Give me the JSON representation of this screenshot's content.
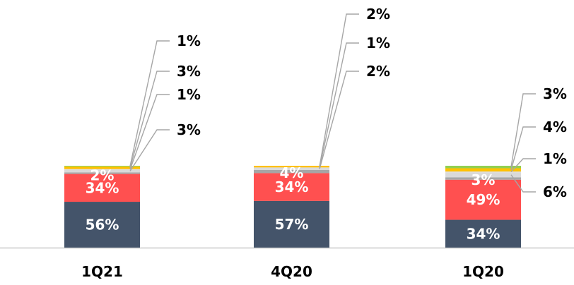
{
  "chart_data": {
    "type": "bar",
    "stacked": true,
    "grid": false,
    "legend": "none",
    "colors": {
      "s1": "#44546a",
      "s2": "#ff5050",
      "s3": "#a6a6a6",
      "s4": "#d9d9d9",
      "s5": "#ffc000",
      "s6": "#92d050",
      "axis": "#d9d9d9",
      "leader": "#a6a6a6",
      "label_in": "#ffffff",
      "label_out": "#000000"
    },
    "bars": [
      {
        "category": "1Q21",
        "segments": [
          {
            "value": 56,
            "label": "56%",
            "color": "s1",
            "label_pos": "inside"
          },
          {
            "value": 34,
            "label": "34%",
            "color": "s2",
            "label_pos": "inside"
          },
          {
            "value": 2,
            "label": "2%",
            "color": "s3",
            "label_pos": "inside"
          },
          {
            "value": 3,
            "label": "3%",
            "color": "s4",
            "label_pos": "right-3"
          },
          {
            "value": 1,
            "label": "1%",
            "color": "s4",
            "label_pos": "right-2"
          },
          {
            "value": 3,
            "label": "3%",
            "color": "s5",
            "label_pos": "right-1"
          },
          {
            "value": 1,
            "label": "1%",
            "color": "s6",
            "label_pos": "right-0"
          }
        ]
      },
      {
        "category": "4Q20",
        "segments": [
          {
            "value": 57,
            "label": "57%",
            "color": "s1",
            "label_pos": "inside"
          },
          {
            "value": 34,
            "label": "34%",
            "color": "s2",
            "label_pos": "inside"
          },
          {
            "value": 4,
            "label": "4%",
            "color": "s3",
            "label_pos": "inside"
          },
          {
            "value": 2,
            "label": "2%",
            "color": "s4",
            "label_pos": "right-2"
          },
          {
            "value": 1,
            "label": "1%",
            "color": "s4",
            "label_pos": "right-1"
          },
          {
            "value": 2,
            "label": "2%",
            "color": "s5",
            "label_pos": "right-0"
          }
        ]
      },
      {
        "category": "1Q20",
        "segments": [
          {
            "value": 34,
            "label": "34%",
            "color": "s1",
            "label_pos": "inside"
          },
          {
            "value": 49,
            "label": "49%",
            "color": "s2",
            "label_pos": "inside"
          },
          {
            "value": 3,
            "label": "3%",
            "color": "s3",
            "label_pos": "inside"
          },
          {
            "value": 6,
            "label": "6%",
            "color": "s4",
            "label_pos": "right-3"
          },
          {
            "value": 1,
            "label": "1%",
            "color": "s4",
            "label_pos": "right-2"
          },
          {
            "value": 4,
            "label": "4%",
            "color": "s5",
            "label_pos": "right-1"
          },
          {
            "value": 3,
            "label": "3%",
            "color": "s6",
            "label_pos": "right-0"
          }
        ]
      }
    ]
  }
}
